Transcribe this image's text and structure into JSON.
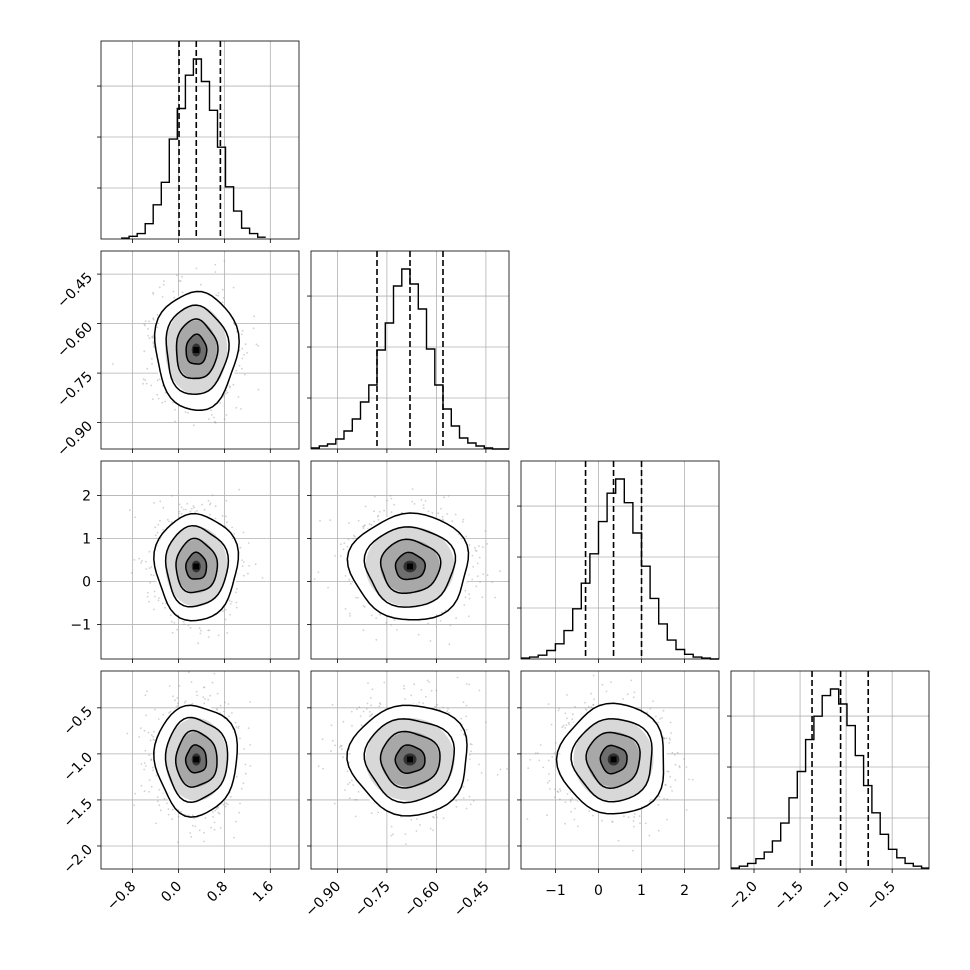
{
  "chart_data": {
    "type": "corner",
    "grid": true,
    "quantiles": [
      0.16,
      0.5,
      0.84
    ],
    "parameters": [
      {
        "xlim": [
          -1.35,
          2.1
        ],
        "ticks": [
          -0.8,
          0.0,
          0.8,
          1.6
        ],
        "tick_labels": [
          "−0.8",
          "0.0",
          "0.8",
          "1.6"
        ],
        "quantile_values": [
          0.01,
          0.31,
          0.73
        ],
        "hist": {
          "bin_edges": [
            -1.0,
            -0.86,
            -0.72,
            -0.58,
            -0.44,
            -0.3,
            -0.16,
            -0.02,
            0.12,
            0.26,
            0.4,
            0.54,
            0.68,
            0.82,
            0.96,
            1.1,
            1.24,
            1.38,
            1.52
          ],
          "counts": [
            1,
            3,
            6,
            17,
            38,
            63,
            111,
            145,
            182,
            200,
            175,
            143,
            102,
            58,
            31,
            12,
            6,
            2
          ]
        }
      },
      {
        "xlim": [
          -0.98,
          -0.38
        ],
        "ticks": [
          -0.9,
          -0.75,
          -0.6,
          -0.45
        ],
        "tick_labels": [
          "−0.90",
          "−0.75",
          "−0.60",
          "−0.45"
        ],
        "quantile_values": [
          -0.78,
          -0.68,
          -0.58
        ],
        "hist": {
          "bin_edges": [
            -0.98,
            -0.955,
            -0.93,
            -0.905,
            -0.88,
            -0.855,
            -0.83,
            -0.805,
            -0.78,
            -0.755,
            -0.73,
            -0.705,
            -0.68,
            -0.655,
            -0.63,
            -0.605,
            -0.58,
            -0.555,
            -0.53,
            -0.505,
            -0.48,
            -0.455,
            -0.43,
            -0.405,
            -0.38
          ],
          "counts": [
            1,
            3,
            5,
            10,
            18,
            30,
            47,
            64,
            99,
            126,
            163,
            180,
            165,
            140,
            100,
            64,
            40,
            23,
            11,
            6,
            3,
            1,
            0,
            0
          ]
        }
      },
      {
        "xlim": [
          -1.8,
          2.8
        ],
        "ticks": [
          -1,
          0,
          1,
          2
        ],
        "tick_labels": [
          "−1",
          "0",
          "1",
          "2"
        ],
        "quantile_values": [
          -0.3,
          0.35,
          1.0
        ],
        "hist": {
          "bin_edges": [
            -1.8,
            -1.6,
            -1.4,
            -1.2,
            -1.0,
            -0.8,
            -0.6,
            -0.4,
            -0.2,
            0.0,
            0.2,
            0.4,
            0.6,
            0.8,
            1.0,
            1.2,
            1.4,
            1.6,
            1.8,
            2.0,
            2.2,
            2.4,
            2.6,
            2.8
          ],
          "counts": [
            1,
            2,
            4,
            9,
            16,
            30,
            53,
            80,
            111,
            145,
            175,
            190,
            165,
            133,
            98,
            64,
            37,
            20,
            10,
            5,
            2,
            1,
            0
          ]
        }
      },
      {
        "xlim": [
          -2.25,
          -0.1
        ],
        "ticks": [
          -2.0,
          -1.5,
          -1.0,
          -0.5
        ],
        "tick_labels": [
          "−2.0",
          "−1.5",
          "−1.0",
          "−0.5"
        ],
        "quantile_values": [
          -1.37,
          -1.06,
          -0.76
        ],
        "hist": {
          "bin_edges": [
            -2.25,
            -2.16,
            -2.07,
            -1.98,
            -1.89,
            -1.8,
            -1.71,
            -1.62,
            -1.53,
            -1.44,
            -1.35,
            -1.26,
            -1.17,
            -1.08,
            -0.99,
            -0.9,
            -0.81,
            -0.72,
            -0.63,
            -0.54,
            -0.45,
            -0.36,
            -0.27,
            -0.18,
            -0.1
          ],
          "counts": [
            1,
            3,
            6,
            11,
            18,
            30,
            49,
            76,
            104,
            138,
            163,
            185,
            192,
            176,
            153,
            121,
            89,
            60,
            37,
            21,
            12,
            6,
            3,
            1
          ]
        }
      }
    ],
    "pairs": [
      {
        "x": 0,
        "y": 1,
        "center": [
          0.31,
          -0.68
        ],
        "sigma": [
          0.36,
          0.09
        ]
      },
      {
        "x": 0,
        "y": 2,
        "center": [
          0.31,
          0.35
        ],
        "sigma": [
          0.36,
          0.62
        ]
      },
      {
        "x": 1,
        "y": 2,
        "center": [
          -0.68,
          0.35
        ],
        "sigma": [
          0.09,
          0.62
        ]
      },
      {
        "x": 0,
        "y": 3,
        "center": [
          0.31,
          -1.06
        ],
        "sigma": [
          0.36,
          0.3
        ]
      },
      {
        "x": 1,
        "y": 3,
        "center": [
          -0.68,
          -1.06
        ],
        "sigma": [
          0.09,
          0.3
        ]
      },
      {
        "x": 2,
        "y": 3,
        "center": [
          0.35,
          -1.06
        ],
        "sigma": [
          0.62,
          0.3
        ]
      }
    ],
    "contour_levels_sigma": [
      0.5,
      1.0,
      1.5,
      2.0
    ]
  }
}
